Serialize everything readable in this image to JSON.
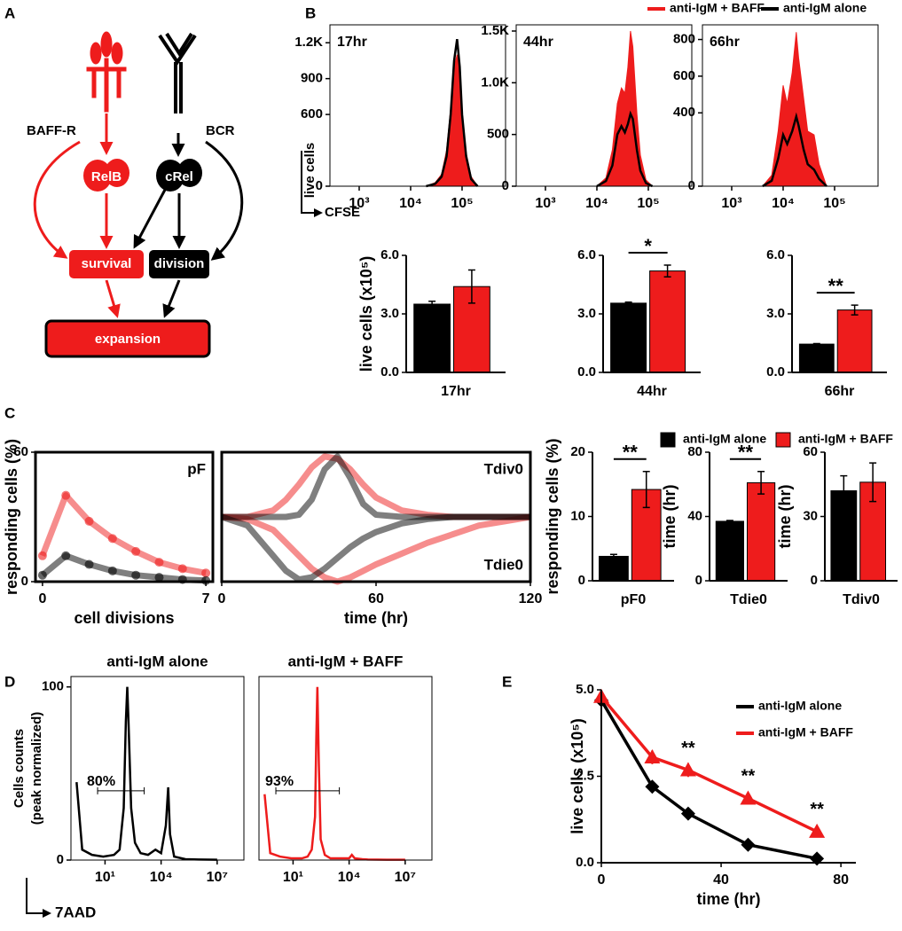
{
  "panel_labels": [
    "A",
    "B",
    "C",
    "D",
    "E"
  ],
  "diagram": {
    "nodes": [
      "BAFF-R",
      "BCR",
      "RelB",
      "cRel",
      "survival",
      "division",
      "expansion"
    ]
  },
  "axis_annotations": {
    "panel_b_y": "live cells",
    "panel_b_x": "CFSE",
    "panel_d_x": "7AAD"
  },
  "chart_data": [
    {
      "type": "area",
      "title": "17hr",
      "title_position": "inside",
      "frame": true,
      "xlog": true,
      "xlim": [
        270,
        700000
      ],
      "xticks": [
        {
          "value": 1000,
          "label": "10³"
        },
        {
          "value": 10000,
          "label": "10⁴"
        },
        {
          "value": 100000,
          "label": "10⁵"
        }
      ],
      "ylim": [
        0,
        1350
      ],
      "yticks": [
        0,
        600,
        900,
        {
          "value": 1200,
          "label": "1.2K"
        }
      ],
      "x": [
        20000,
        30000,
        40000,
        50000,
        60000,
        70000,
        80000,
        90000,
        100000,
        120000,
        150000,
        200000
      ],
      "legend": "top-right",
      "series": [
        {
          "name": "anti-IgM + BAFF",
          "color": "#ee1c1c",
          "fill": true,
          "values": [
            0,
            30,
            100,
            300,
            650,
            1000,
            1100,
            950,
            620,
            280,
            80,
            0
          ]
        },
        {
          "name": "anti-IgM alone",
          "color": "#000000",
          "values": [
            0,
            20,
            80,
            250,
            600,
            1050,
            1230,
            1000,
            600,
            250,
            60,
            0
          ]
        }
      ]
    },
    {
      "type": "area",
      "title": "44hr",
      "title_position": "inside",
      "frame": true,
      "xlog": true,
      "xlim": [
        270,
        700000
      ],
      "xticks": [
        {
          "value": 1000,
          "label": "10³"
        },
        {
          "value": 10000,
          "label": "10⁴"
        },
        {
          "value": 100000,
          "label": "10⁵"
        }
      ],
      "ylim": [
        0,
        1560
      ],
      "yticks": [
        0,
        500,
        {
          "value": 1000,
          "label": "1.0K"
        },
        {
          "value": 1500,
          "label": "1.5K"
        }
      ],
      "x": [
        10000,
        15000,
        20000,
        25000,
        30000,
        35000,
        40000,
        45000,
        50000,
        60000,
        70000,
        90000,
        120000
      ],
      "series": [
        {
          "color": "#ee1c1c",
          "fill": true,
          "values": [
            0,
            80,
            350,
            800,
            950,
            900,
            1150,
            1500,
            1350,
            700,
            300,
            60,
            0
          ]
        },
        {
          "color": "#000000",
          "values": [
            0,
            50,
            200,
            500,
            580,
            520,
            600,
            700,
            650,
            350,
            150,
            30,
            0
          ]
        }
      ]
    },
    {
      "type": "area",
      "title": "66hr",
      "title_position": "inside",
      "frame": true,
      "xlog": true,
      "xlim": [
        270,
        700000
      ],
      "xticks": [
        {
          "value": 1000,
          "label": "10³"
        },
        {
          "value": 10000,
          "label": "10⁴"
        },
        {
          "value": 100000,
          "label": "10⁵"
        }
      ],
      "ylim": [
        0,
        880
      ],
      "yticks": [
        0,
        400,
        600,
        800
      ],
      "x": [
        4000,
        6000,
        8000,
        10000,
        12000,
        15000,
        18000,
        20000,
        25000,
        30000,
        40000,
        50000,
        70000
      ],
      "series": [
        {
          "color": "#ee1c1c",
          "fill": true,
          "values": [
            0,
            60,
            300,
            550,
            450,
            620,
            840,
            700,
            480,
            300,
            280,
            120,
            0
          ]
        },
        {
          "color": "#000000",
          "values": [
            0,
            30,
            150,
            280,
            230,
            300,
            380,
            330,
            200,
            120,
            90,
            40,
            0
          ]
        }
      ]
    },
    {
      "type": "bar",
      "categories": [
        "17hr"
      ],
      "y_label": "live cells (x10⁵)",
      "ylim": [
        0,
        6
      ],
      "yticks": [
        {
          "value": 0,
          "label": "0.0"
        },
        {
          "value": 3,
          "label": "3.0"
        },
        {
          "value": 6,
          "label": "6.0"
        }
      ],
      "series": [
        {
          "color": "#000000",
          "values": [
            3.5
          ],
          "errors": [
            0.15
          ]
        },
        {
          "color": "#ee1c1c",
          "values": [
            4.4
          ],
          "errors": [
            0.85
          ]
        }
      ]
    },
    {
      "type": "bar",
      "categories": [
        "44hr"
      ],
      "significance": "*",
      "ylim": [
        0,
        6
      ],
      "yticks": [
        {
          "value": 0,
          "label": "0.0"
        },
        {
          "value": 3,
          "label": "3.0"
        },
        {
          "value": 6,
          "label": "6.0"
        }
      ],
      "series": [
        {
          "color": "#000000",
          "values": [
            3.55
          ],
          "errors": [
            0.05
          ]
        },
        {
          "color": "#ee1c1c",
          "values": [
            5.2
          ],
          "errors": [
            0.3
          ]
        }
      ]
    },
    {
      "type": "bar",
      "categories": [
        "66hr"
      ],
      "significance": "**",
      "ylim": [
        0,
        6
      ],
      "yticks": [
        {
          "value": 0,
          "label": "0.0"
        },
        {
          "value": 3,
          "label": "3.0"
        },
        {
          "value": 6,
          "label": "6.0"
        }
      ],
      "series": [
        {
          "color": "#000000",
          "values": [
            1.45
          ],
          "errors": [
            0.03
          ]
        },
        {
          "color": "#ee1c1c",
          "values": [
            3.2
          ],
          "errors": [
            0.25
          ]
        }
      ]
    },
    {
      "type": "line",
      "frame": true,
      "line_style": "band",
      "annotations": [
        "pF"
      ],
      "y_label": "responding cells (%)",
      "x_label": "cell divisions",
      "xlim": [
        -0.3,
        7.3
      ],
      "xticks": [
        0,
        7
      ],
      "ylim": [
        0,
        60
      ],
      "yticks": [
        0,
        60
      ],
      "x": [
        0,
        1,
        2,
        3,
        4,
        5,
        6,
        7
      ],
      "series": [
        {
          "color": "#ee1c1c",
          "marker": "circle",
          "values": [
            12,
            40,
            28,
            20,
            14,
            9,
            6,
            4
          ]
        },
        {
          "color": "#000000",
          "marker": "circle",
          "values": [
            3,
            12,
            8,
            5,
            3,
            2,
            1,
            0.5
          ]
        }
      ]
    },
    {
      "type": "line",
      "frame": true,
      "line_style": "band",
      "annotations": [
        "Tdiv0",
        "Tdie0"
      ],
      "x_label": "time (hr)",
      "xlim": [
        0,
        120
      ],
      "xticks": [
        0,
        60,
        120
      ],
      "ylim": [
        0,
        60
      ],
      "x": [
        0,
        10,
        20,
        25,
        30,
        35,
        40,
        45,
        50,
        55,
        60,
        70,
        80,
        90,
        100,
        110,
        120
      ],
      "series": [
        {
          "color": "#ee1c1c",
          "values": [
            30,
            30,
            33,
            38,
            45,
            53,
            58,
            57,
            52,
            45,
            39,
            33,
            31,
            30,
            30,
            30,
            30
          ]
        },
        {
          "color": "#ee1c1c",
          "values": [
            30,
            29,
            24,
            18,
            12,
            6,
            2,
            0,
            2,
            5,
            8,
            13,
            18,
            22,
            26,
            28,
            30
          ]
        },
        {
          "color": "#000000",
          "values": [
            30,
            30,
            30,
            30,
            31,
            38,
            52,
            58,
            48,
            36,
            31,
            30,
            30,
            30,
            30,
            30,
            30
          ]
        },
        {
          "color": "#000000",
          "values": [
            30,
            26,
            12,
            5,
            1,
            2,
            6,
            11,
            16,
            20,
            23,
            27,
            29,
            30,
            30,
            30,
            30
          ]
        }
      ]
    },
    {
      "type": "bar",
      "categories": [
        "pF0"
      ],
      "significance": "**",
      "y_label": "responding cells (%)",
      "legend": "top-right",
      "ylim": [
        0,
        20
      ],
      "yticks": [
        0,
        10,
        20
      ],
      "series": [
        {
          "name": "anti-IgM alone",
          "color": "#000000",
          "values": [
            3.8
          ],
          "errors": [
            0.3
          ]
        },
        {
          "name": "anti-IgM + BAFF",
          "color": "#ee1c1c",
          "values": [
            14.2
          ],
          "errors": [
            2.8
          ]
        }
      ]
    },
    {
      "type": "bar",
      "categories": [
        "Tdie0"
      ],
      "significance": "**",
      "y_label": "time (hr)",
      "ylim": [
        0,
        80
      ],
      "yticks": [
        0,
        40,
        80
      ],
      "series": [
        {
          "color": "#000000",
          "values": [
            37
          ],
          "errors": [
            0.5
          ]
        },
        {
          "color": "#ee1c1c",
          "values": [
            61
          ],
          "errors": [
            7
          ]
        }
      ]
    },
    {
      "type": "bar",
      "categories": [
        "Tdiv0"
      ],
      "y_label": "time (hr)",
      "ylim": [
        0,
        60
      ],
      "yticks": [
        0,
        30,
        60
      ],
      "series": [
        {
          "color": "#000000",
          "values": [
            42
          ],
          "errors": [
            7
          ]
        },
        {
          "color": "#ee1c1c",
          "values": [
            46
          ],
          "errors": [
            9
          ]
        }
      ]
    },
    {
      "type": "area",
      "title": "anti-IgM alone",
      "title_position": "above",
      "frame": true,
      "xlog": true,
      "y_label": [
        "Cells counts",
        "(peak normalized)"
      ],
      "xlim": [
        0.15,
        270000000
      ],
      "xticks": [
        {
          "value": 10,
          "label": "10¹"
        },
        {
          "value": 10000,
          "label": "10⁴"
        },
        {
          "value": 10000000,
          "label": "10⁷"
        }
      ],
      "ylim": [
        0,
        106
      ],
      "yticks": [
        0,
        100
      ],
      "gate": {
        "range": [
          4,
          1250
        ],
        "y": 40,
        "label": "80%"
      },
      "x": [
        0.3,
        0.6,
        2,
        8,
        30,
        60,
        100,
        130,
        155,
        180,
        250,
        400,
        800,
        2000,
        5000,
        10000,
        18000,
        24000,
        30000,
        50000,
        200000,
        1000000,
        10000000
      ],
      "series": [
        {
          "color": "#000000",
          "values": [
            45,
            6,
            3,
            2,
            3,
            6,
            30,
            80,
            100,
            80,
            30,
            10,
            4,
            3,
            6,
            4,
            20,
            42,
            15,
            2,
            0.5,
            0.3,
            0.2
          ]
        }
      ]
    },
    {
      "type": "area",
      "title": "anti-IgM + BAFF",
      "title_position": "above",
      "frame": true,
      "xlog": true,
      "xlim": [
        0.15,
        270000000
      ],
      "xticks": [
        {
          "value": 10,
          "label": "10¹"
        },
        {
          "value": 10000,
          "label": "10⁴"
        },
        {
          "value": 10000000,
          "label": "10⁷"
        }
      ],
      "ylim": [
        0,
        106
      ],
      "gate": {
        "range": [
          1.2,
          3000
        ],
        "y": 40,
        "label": "93%"
      },
      "x": [
        0.3,
        0.6,
        2,
        8,
        30,
        60,
        100,
        150,
        175,
        200,
        240,
        300,
        500,
        1000,
        3000,
        10000,
        14000,
        20000,
        50000,
        100000,
        1000000,
        5000000,
        10000000
      ],
      "series": [
        {
          "color": "#ee1c1c",
          "values": [
            38,
            4,
            2,
            1,
            1,
            2,
            6,
            25,
            70,
            100,
            55,
            12,
            3,
            1,
            1,
            1,
            3,
            1,
            0.5,
            0.3,
            0.2,
            0.2,
            0.2
          ]
        }
      ]
    },
    {
      "type": "line",
      "legend": "top-right",
      "y_label": "live cells (x10⁵)",
      "x_label": "time (hr)",
      "xlim": [
        0,
        85
      ],
      "xticks": [
        0,
        40,
        80
      ],
      "ylim": [
        0,
        5
      ],
      "yticks": [
        {
          "value": 0,
          "label": "0.0"
        },
        2.5,
        {
          "value": 5,
          "label": "5.0"
        }
      ],
      "x": [
        0,
        17,
        29,
        49,
        72
      ],
      "series": [
        {
          "name": "anti-IgM alone",
          "color": "#000000",
          "marker": "diamond",
          "values": [
            4.7,
            2.2,
            1.42,
            0.52,
            0.12
          ],
          "errors": [
            0.05,
            0.08,
            0.05,
            0.05,
            0.03
          ]
        },
        {
          "name": "anti-IgM + BAFF",
          "color": "#ee1c1c",
          "marker": "triangle",
          "values": [
            4.8,
            3.05,
            2.68,
            1.86,
            0.9
          ],
          "errors": [
            0.1,
            0.2,
            0.2,
            0.1,
            0.05
          ],
          "value_annotations": [
            null,
            null,
            "**",
            "**",
            "**"
          ]
        }
      ]
    }
  ]
}
